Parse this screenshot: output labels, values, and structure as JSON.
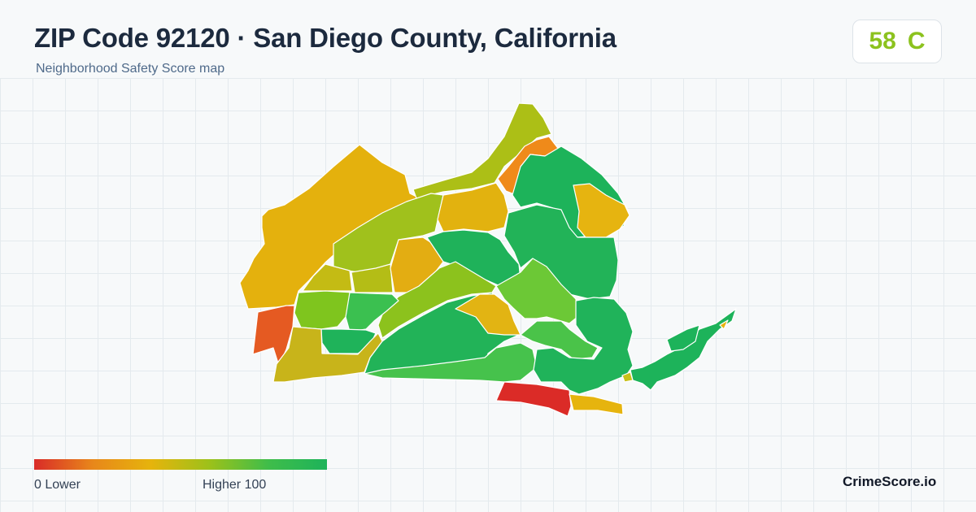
{
  "header": {
    "title": "ZIP Code 92120 · San Diego County, California",
    "subtitle": "Neighborhood Safety Score map"
  },
  "score": {
    "value": "58",
    "grade": "C",
    "color": "#8cc21e"
  },
  "legend": {
    "min_label": "0  Lower",
    "max_label": "Higher  100",
    "colors": [
      "#d92b28",
      "#e8871a",
      "#e6b40c",
      "#9cc11a",
      "#3fbd4a",
      "#1db35a"
    ]
  },
  "brand": "CrimeScore.io",
  "map": {
    "zip": "92120",
    "color_scale": {
      "low": "#d92b28",
      "high": "#1db35a"
    }
  }
}
